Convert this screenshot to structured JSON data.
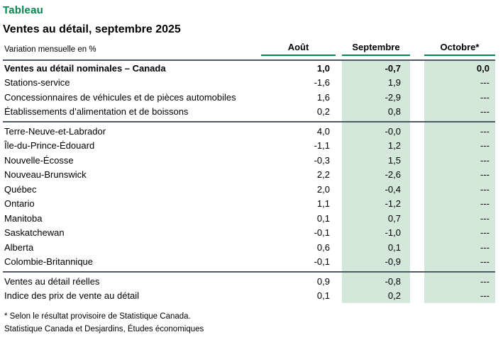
{
  "page": {
    "kicker": "Tableau",
    "title": "Ventes au détail, septembre 2025"
  },
  "colors": {
    "accent_green": "#00874E",
    "band_green": "#D3E7DB",
    "rule_dark": "#4D5A66"
  },
  "chart_data": {
    "type": "table",
    "title": "Ventes au détail, septembre 2025",
    "unit": "Variation mensuelle en %",
    "columns": [
      "Août",
      "Septembre",
      "Octobre*"
    ],
    "groups": [
      {
        "name": "canada-et-secteurs",
        "rows": [
          {
            "label": "Ventes au détail nominales – Canada",
            "bold": true,
            "values": [
              "1,0",
              "-0,7",
              "0,0"
            ]
          },
          {
            "label": "Stations-service",
            "bold": false,
            "values": [
              "-1,6",
              "1,9",
              "---"
            ]
          },
          {
            "label": "Concessionnaires de véhicules et de pièces automobiles",
            "bold": false,
            "values": [
              "1,6",
              "-2,9",
              "---"
            ]
          },
          {
            "label": "Établissements d’alimentation et de boissons",
            "bold": false,
            "values": [
              "0,2",
              "0,8",
              "---"
            ]
          }
        ]
      },
      {
        "name": "provinces",
        "rows": [
          {
            "label": "Terre-Neuve-et-Labrador",
            "bold": false,
            "values": [
              "4,0",
              "-0,0",
              "---"
            ]
          },
          {
            "label": "Île-du-Prince-Édouard",
            "bold": false,
            "values": [
              "-1,1",
              "1,2",
              "---"
            ]
          },
          {
            "label": "Nouvelle-Écosse",
            "bold": false,
            "values": [
              "-0,3",
              "1,5",
              "---"
            ]
          },
          {
            "label": "Nouveau-Brunswick",
            "bold": false,
            "values": [
              "2,2",
              "-2,6",
              "---"
            ]
          },
          {
            "label": "Québec",
            "bold": false,
            "values": [
              "2,0",
              "-0,4",
              "---"
            ]
          },
          {
            "label": "Ontario",
            "bold": false,
            "values": [
              "1,1",
              "-1,2",
              "---"
            ]
          },
          {
            "label": "Manitoba",
            "bold": false,
            "values": [
              "0,1",
              "0,7",
              "---"
            ]
          },
          {
            "label": "Saskatchewan",
            "bold": false,
            "values": [
              "-0,1",
              "-1,0",
              "---"
            ]
          },
          {
            "label": "Alberta",
            "bold": false,
            "values": [
              "0,6",
              "0,1",
              "---"
            ]
          },
          {
            "label": "Colombie-Britannique",
            "bold": false,
            "values": [
              "-0,1",
              "-0,9",
              "---"
            ]
          }
        ]
      },
      {
        "name": "autres-indicateurs",
        "rows": [
          {
            "label": "Ventes au détail réelles",
            "bold": false,
            "values": [
              "0,9",
              "-0,8",
              "---"
            ]
          },
          {
            "label": "Indice des prix de vente au détail",
            "bold": false,
            "values": [
              "0,1",
              "0,2",
              "---"
            ]
          }
        ]
      }
    ]
  },
  "footnotes": [
    "* Selon le résultat provisoire de Statistique Canada.",
    "Statistique Canada et Desjardins, Études économiques"
  ]
}
